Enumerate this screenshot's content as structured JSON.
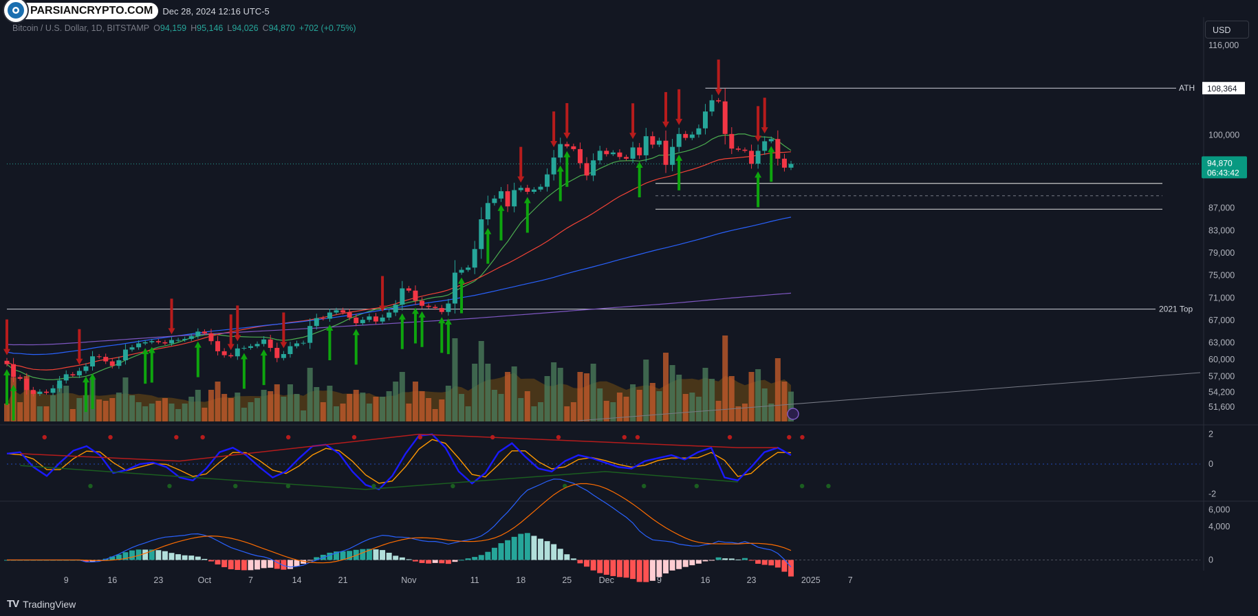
{
  "header": {
    "brand": "PARSIANCRYPTO.COM",
    "date": "Dec 28, 2024 12:16 UTC-5"
  },
  "symbol_bar": {
    "name": "Bitcoin / U.S. Dollar, 1D, BITSTAMP",
    "o_label": "O",
    "o": "94,159",
    "h_label": "H",
    "h": "95,146",
    "l_label": "L",
    "l": "94,026",
    "c_label": "C",
    "c": "94,870",
    "change": "+702 (+0.75%)"
  },
  "currency_button": "USD",
  "footer": {
    "logo": "TV",
    "brand": "TradingView"
  },
  "colors": {
    "background": "#131722",
    "up": "#26a69a",
    "down": "#f23645",
    "ema_green": "#4caf50",
    "ema_red": "#f44336",
    "ema_blue": "#2962ff",
    "ema_purple": "#7e57c2",
    "arrow_up": "#0ea50e",
    "arrow_down": "#b71c1c",
    "price_label_bg": "#089981",
    "osc_fast": "#1a1aff",
    "osc_slow": "#ff9800",
    "macd_line": "#2962ff",
    "signal_line": "#ff6d00"
  },
  "chart_data": [
    {
      "type": "candlestick",
      "title": "Bitcoin / U.S. Dollar, 1D, BITSTAMP",
      "ylim": [
        49000,
        121000
      ],
      "y_ticks": [
        116000,
        100000,
        87000,
        83000,
        79000,
        75000,
        71000,
        67000,
        63000,
        60000,
        57000,
        54200,
        51600
      ],
      "y_tick_labels": [
        "116,000",
        "100,000",
        "87,000",
        "83,000",
        "79,000",
        "75,000",
        "71,000",
        "67,000",
        "63,000",
        "60,000",
        "57,000",
        "54,200",
        "51,600"
      ],
      "x_tick_labels": [
        {
          "label": "9",
          "day": 9
        },
        {
          "label": "16",
          "day": 16
        },
        {
          "label": "23",
          "day": 23
        },
        {
          "label": "Oct",
          "day": 30
        },
        {
          "label": "7",
          "day": 37
        },
        {
          "label": "14",
          "day": 44
        },
        {
          "label": "21",
          "day": 51
        },
        {
          "label": "Nov",
          "day": 61
        },
        {
          "label": "11",
          "day": 71
        },
        {
          "label": "18",
          "day": 78
        },
        {
          "label": "25",
          "day": 85
        },
        {
          "label": "Dec",
          "day": 91
        },
        {
          "label": "9",
          "day": 99
        },
        {
          "label": "16",
          "day": 106
        },
        {
          "label": "23",
          "day": 113
        },
        {
          "label": "2025",
          "day": 122
        },
        {
          "label": "7",
          "day": 128
        }
      ],
      "candles_close": [
        59200,
        56900,
        56600,
        54600,
        53900,
        54300,
        54100,
        54900,
        56300,
        57400,
        57200,
        58000,
        58800,
        60600,
        60500,
        59700,
        58900,
        59900,
        61800,
        62200,
        62900,
        63100,
        63300,
        63100,
        62900,
        63500,
        63500,
        63700,
        64200,
        65000,
        64700,
        63300,
        61500,
        60800,
        60600,
        62000,
        62100,
        62400,
        62800,
        63600,
        62100,
        60300,
        61000,
        62400,
        62900,
        63000,
        66000,
        67400,
        67300,
        68400,
        68800,
        68400,
        67500,
        66500,
        67100,
        67700,
        66800,
        67500,
        68400,
        69800,
        72700,
        72300,
        70500,
        69600,
        69400,
        69200,
        68500,
        70000,
        75500,
        76000,
        76400,
        79700,
        85000,
        87900,
        88700,
        90000,
        87300,
        90200,
        90600,
        89900,
        90300,
        90800,
        93000,
        96000,
        98400,
        98000,
        97500,
        95000,
        92800,
        95500,
        97200,
        96600,
        96900,
        96100,
        95800,
        97800,
        96400,
        99800,
        98300,
        99000,
        94700,
        97900,
        100200,
        99500,
        100100,
        101200,
        104200,
        106200,
        106000,
        100200,
        97600,
        97400,
        97200,
        94900,
        97200,
        98900,
        99300,
        95800,
        94200,
        94870
      ],
      "arrows_down_day": [
        0,
        11,
        25,
        34,
        35,
        42,
        57,
        78,
        83,
        85,
        95,
        100,
        102,
        108,
        114,
        115
      ],
      "arrows_up_day": [
        0,
        1,
        12,
        13,
        21,
        22,
        29,
        36,
        39,
        49,
        53,
        60,
        62,
        63,
        66,
        67,
        69,
        73,
        75,
        79,
        84,
        85,
        96,
        102,
        114,
        116
      ],
      "emas": [
        {
          "name": "ema_20",
          "color": "#4caf50",
          "start": 59000,
          "end": 98600
        },
        {
          "name": "ema_50",
          "color": "#f44336",
          "start": 60200,
          "end": 94600
        },
        {
          "name": "ema_100",
          "color": "#2962ff",
          "start": 62300,
          "end": 81300
        },
        {
          "name": "ema_200",
          "color": "#7e57c2",
          "start": 63100,
          "end": 70900
        }
      ],
      "horizontal_levels": [
        {
          "label": "ATH",
          "value": 108364,
          "value_label": "108,364"
        },
        {
          "label": "2021 Top",
          "value": 69000
        }
      ],
      "support_zone": {
        "top": 91400,
        "mid": 89200,
        "bottom": 86800
      },
      "last_price_label": "94,870",
      "countdown_label": "06:43:42",
      "volume_note": "volume histogram with moving-average area"
    },
    {
      "type": "line",
      "title": "",
      "ylim": [
        -2.4,
        2.4
      ],
      "y_tick_labels": [
        "2",
        "0",
        "-2"
      ],
      "series": [
        {
          "values": [
            0.7,
            0.8,
            -0.2,
            -0.8,
            0.1,
            0.9,
            1.2,
            0.6,
            -0.6,
            -0.4,
            0.0,
            0.1,
            -0.2,
            -0.9,
            -1.1,
            -0.3,
            0.8,
            1.1,
            0.6,
            -0.2,
            -0.9,
            -0.5,
            0.4,
            1.2,
            1.3,
            0.7,
            -0.5,
            -1.4,
            -1.7,
            -0.8,
            0.7,
            1.9,
            2.0,
            1.1,
            -0.5,
            -1.3,
            -0.6,
            0.8,
            1.4,
            0.5,
            -0.3,
            -0.5,
            0.2,
            0.6,
            0.4,
            0.1,
            -0.2,
            -0.3,
            0.2,
            0.4,
            0.6,
            0.3,
            0.8,
            1.1,
            -0.9,
            -1.1,
            -0.2,
            0.8,
            1.1,
            0.6
          ]
        }
      ]
    },
    {
      "type": "bar",
      "title": "",
      "ylim": [
        -700,
        6700
      ],
      "y_tick_labels": [
        "6,000",
        "4,000",
        "0"
      ],
      "values_note": "MACD histogram bars with MACD and signal lines"
    }
  ]
}
